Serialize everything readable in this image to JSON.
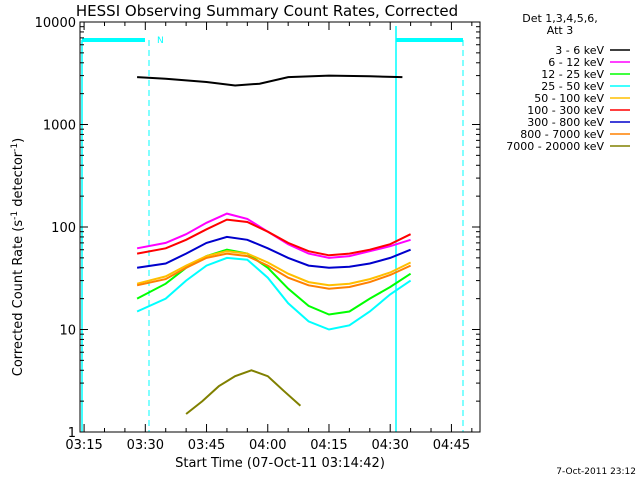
{
  "chart_data": {
    "type": "line",
    "title": "HESSI Observing Summary Count Rates, Corrected",
    "xlabel": "Start Time (07-Oct-11 03:14:42)",
    "ylabel_main": "Corrected Count Rate (s",
    "ylabel_sup": "-1",
    "ylabel_mid": " detector",
    "ylabel_end": ")",
    "y_scale": "log",
    "ylim": [
      1,
      10000
    ],
    "xlim": [
      "03:14",
      "04:52"
    ],
    "x_ticks": [
      "03:15",
      "03:30",
      "03:45",
      "04:00",
      "04:15",
      "04:30",
      "04:45"
    ],
    "y_ticks": [
      "1",
      "10",
      "100",
      "1000",
      "10000"
    ],
    "legend_header": [
      "Det 1,3,4,5,6,",
      "Att 3"
    ],
    "legend_position": "top-right",
    "timestamp": "7-Oct-2011 23:12",
    "flag_label": "N",
    "series": [
      {
        "name": "3 - 6 keV",
        "color": "#000000",
        "x": [
          "03:28",
          "03:35",
          "03:45",
          "03:52",
          "03:58",
          "04:05",
          "04:15",
          "04:25",
          "04:33"
        ],
        "y": [
          2900,
          2800,
          2600,
          2400,
          2500,
          2900,
          3000,
          2950,
          2900
        ]
      },
      {
        "name": "6 - 12 keV",
        "color": "#ff00ff",
        "x": [
          "03:28",
          "03:35",
          "03:40",
          "03:45",
          "03:50",
          "03:55",
          "04:00",
          "04:05",
          "04:10",
          "04:15",
          "04:20",
          "04:25",
          "04:30",
          "04:35"
        ],
        "y": [
          62,
          70,
          85,
          110,
          135,
          120,
          90,
          68,
          55,
          50,
          52,
          58,
          65,
          75
        ]
      },
      {
        "name": "12 - 25 keV",
        "color": "#00ff00",
        "x": [
          "03:28",
          "03:35",
          "03:40",
          "03:45",
          "03:50",
          "03:55",
          "04:00",
          "04:05",
          "04:10",
          "04:15",
          "04:20",
          "04:25",
          "04:30",
          "04:35"
        ],
        "y": [
          20,
          28,
          40,
          52,
          60,
          55,
          40,
          25,
          17,
          14,
          15,
          20,
          26,
          35
        ]
      },
      {
        "name": "25 - 50 keV",
        "color": "#00ffff",
        "x": [
          "03:28",
          "03:35",
          "03:40",
          "03:45",
          "03:50",
          "03:55",
          "04:00",
          "04:05",
          "04:10",
          "04:15",
          "04:20",
          "04:25",
          "04:30",
          "04:35"
        ],
        "y": [
          15,
          20,
          30,
          42,
          50,
          48,
          32,
          18,
          12,
          10,
          11,
          15,
          22,
          30
        ]
      },
      {
        "name": "50 - 100 keV",
        "color": "#ffbf00",
        "x": [
          "03:28",
          "03:35",
          "03:40",
          "03:45",
          "03:50",
          "03:55",
          "04:00",
          "04:05",
          "04:10",
          "04:15",
          "04:20",
          "04:25",
          "04:30",
          "04:35"
        ],
        "y": [
          28,
          33,
          42,
          52,
          58,
          55,
          45,
          35,
          29,
          27,
          28,
          31,
          36,
          45
        ]
      },
      {
        "name": "100 - 300 keV",
        "color": "#ff0000",
        "x": [
          "03:28",
          "03:35",
          "03:40",
          "03:45",
          "03:50",
          "03:55",
          "04:00",
          "04:05",
          "04:10",
          "04:15",
          "04:20",
          "04:25",
          "04:30",
          "04:35"
        ],
        "y": [
          55,
          62,
          75,
          95,
          118,
          112,
          90,
          70,
          58,
          53,
          55,
          60,
          68,
          85
        ]
      },
      {
        "name": "300 - 800 keV",
        "color": "#0000cc",
        "x": [
          "03:28",
          "03:35",
          "03:40",
          "03:45",
          "03:50",
          "03:55",
          "04:00",
          "04:05",
          "04:10",
          "04:15",
          "04:20",
          "04:25",
          "04:30",
          "04:35"
        ],
        "y": [
          40,
          44,
          55,
          70,
          80,
          75,
          62,
          50,
          42,
          40,
          41,
          44,
          50,
          60
        ]
      },
      {
        "name": "800 - 7000 keV",
        "color": "#ff8000",
        "x": [
          "03:28",
          "03:35",
          "03:40",
          "03:45",
          "03:50",
          "03:55",
          "04:00",
          "04:05",
          "04:10",
          "04:15",
          "04:20",
          "04:25",
          "04:30",
          "04:35"
        ],
        "y": [
          27,
          31,
          40,
          50,
          55,
          52,
          42,
          32,
          27,
          25,
          26,
          29,
          34,
          42
        ]
      },
      {
        "name": "7000 - 20000 keV",
        "color": "#808000",
        "x": [
          "03:40",
          "03:44",
          "03:48",
          "03:52",
          "03:56",
          "04:00",
          "04:04",
          "04:08"
        ],
        "y": [
          1.5,
          2.0,
          2.8,
          3.5,
          4.0,
          3.5,
          2.5,
          1.8
        ]
      }
    ]
  }
}
